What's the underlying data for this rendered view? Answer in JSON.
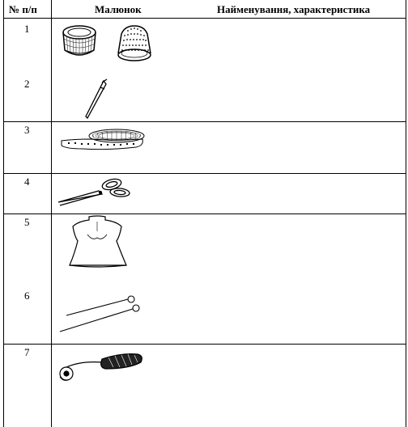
{
  "table": {
    "headers": {
      "number": "№ п/п",
      "picture": "Малюнок",
      "name": "Найменування, характеристика"
    },
    "rows": [
      {
        "number": "1",
        "picture_icon": "thimble-icon"
      },
      {
        "number": "2",
        "picture_icon": "pin-icon"
      },
      {
        "number": "3",
        "picture_icon": "measuring-tape-icon"
      },
      {
        "number": "4",
        "picture_icon": "scissors-icon"
      },
      {
        "number": "5",
        "picture_icon": "dress-form-icon"
      },
      {
        "number": "6",
        "picture_icon": "pins-icon"
      },
      {
        "number": "7",
        "picture_icon": "tracing-wheel-icon"
      }
    ]
  }
}
